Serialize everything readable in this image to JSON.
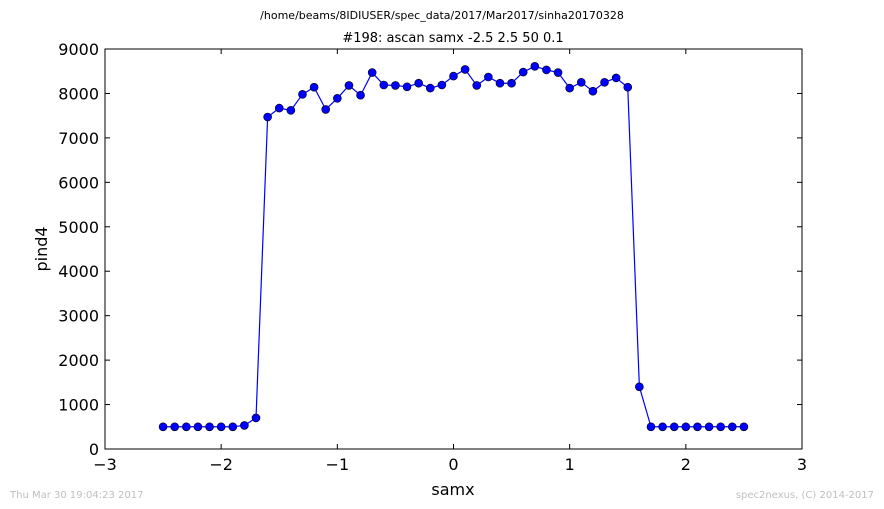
{
  "footer": {
    "timestamp": "Thu Mar 30 19:04:23 2017",
    "credit": "spec2nexus, (C) 2014-2017"
  },
  "chart_data": {
    "type": "line",
    "subtitle": "/home/beams/8IDIUSER/spec_data/2017/Mar2017/sinha20170328",
    "title": "#198: ascan  samx -2.5 2.5  50 0.1",
    "xlabel": "samx",
    "ylabel": "pind4",
    "xlim": [
      -3,
      3
    ],
    "ylim": [
      0,
      9000
    ],
    "xticks": [
      -3,
      -2,
      -1,
      0,
      1,
      2,
      3
    ],
    "xtick_labels": [
      "−3",
      "−2",
      "−1",
      "0",
      "1",
      "2",
      "3"
    ],
    "yticks": [
      0,
      1000,
      2000,
      3000,
      4000,
      5000,
      6000,
      7000,
      8000,
      9000
    ],
    "ytick_labels": [
      "0",
      "1000",
      "2000",
      "3000",
      "4000",
      "5000",
      "6000",
      "7000",
      "8000",
      "9000"
    ],
    "grid": false,
    "line_color": "#0000ff",
    "marker_color": "#0000ff",
    "series": [
      {
        "x": [
          -2.5,
          -2.4,
          -2.3,
          -2.2,
          -2.1,
          -2.0,
          -1.9,
          -1.8,
          -1.7,
          -1.6,
          -1.5,
          -1.4,
          -1.3,
          -1.2,
          -1.1,
          -1.0,
          -0.9,
          -0.8,
          -0.7,
          -0.6,
          -0.5,
          -0.4,
          -0.3,
          -0.2,
          -0.1,
          0.0,
          0.1,
          0.2,
          0.3,
          0.4,
          0.5,
          0.6,
          0.7,
          0.8,
          0.9,
          1.0,
          1.1,
          1.2,
          1.3,
          1.4,
          1.5,
          1.6,
          1.7,
          1.8,
          1.9,
          2.0,
          2.1,
          2.2,
          2.3,
          2.4,
          2.5
        ],
        "y": [
          500,
          500,
          500,
          500,
          500,
          500,
          500,
          530,
          700,
          7470,
          7670,
          7620,
          7980,
          8140,
          7640,
          7890,
          8180,
          7960,
          8470,
          8190,
          8180,
          8150,
          8230,
          8120,
          8190,
          8390,
          8540,
          8180,
          8370,
          8230,
          8230,
          8480,
          8610,
          8530,
          8470,
          8120,
          8250,
          8050,
          8250,
          8350,
          8140,
          1400,
          500,
          500,
          500,
          500,
          500,
          500,
          500,
          500,
          500
        ]
      }
    ]
  }
}
